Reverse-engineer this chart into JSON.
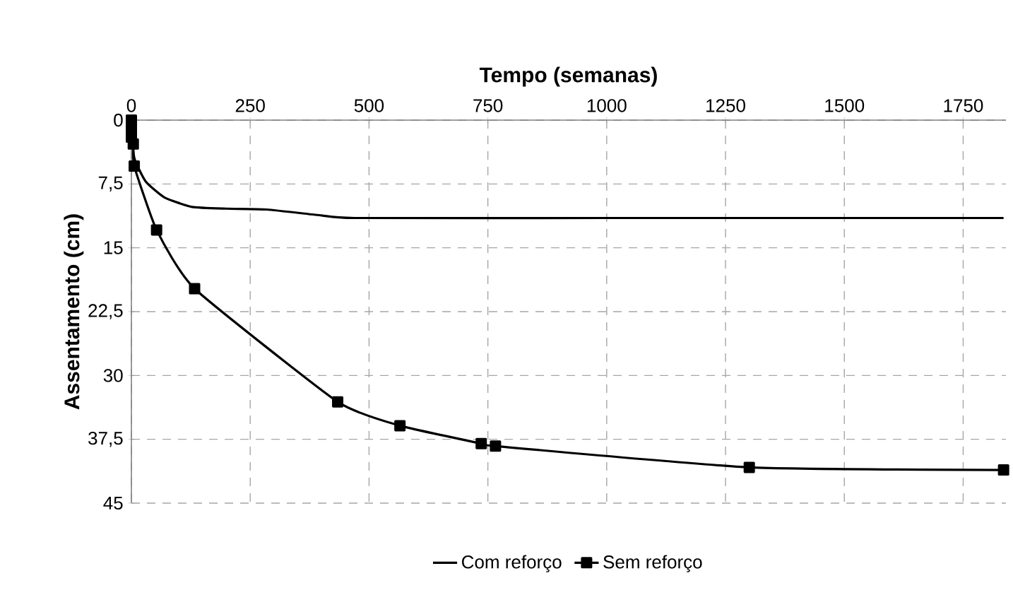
{
  "chart_data": {
    "type": "line",
    "xlabel": "Tempo (semanas)",
    "ylabel": "Assentamento (cm)",
    "xlim": [
      0,
      1840
    ],
    "ylim": [
      45,
      0
    ],
    "xticks": [
      0,
      250,
      500,
      750,
      1000,
      1250,
      1500,
      1750
    ],
    "yticks": [
      0,
      {
        "value": 7.5,
        "label": "7,5"
      },
      15,
      {
        "value": 22.5,
        "label": "22,5"
      },
      30,
      {
        "value": 37.5,
        "label": "37,5"
      },
      45
    ],
    "grid": true,
    "legend": "bottom",
    "line_style": "solid",
    "series": [
      {
        "name": "Com reforço",
        "color": "#000000",
        "marker": "none",
        "x": [
          0,
          6,
          30,
          70,
          128,
          200,
          285,
          400,
          470,
          1000,
          1500,
          1835
        ],
        "values": [
          0,
          4.4,
          7.2,
          9.1,
          10.2,
          10.4,
          10.5,
          11.2,
          11.5,
          11.5,
          11.5,
          11.5
        ]
      },
      {
        "name": "Sem reforço",
        "color": "#000000",
        "marker": "square",
        "x": [
          0,
          0,
          0,
          4,
          6,
          53,
          133,
          434,
          565,
          736,
          766,
          1300,
          1835
        ],
        "values": [
          0,
          1,
          2,
          2.8,
          5.4,
          12.9,
          19.8,
          33.1,
          35.9,
          38.0,
          38.3,
          40.8,
          41.1
        ]
      }
    ]
  }
}
